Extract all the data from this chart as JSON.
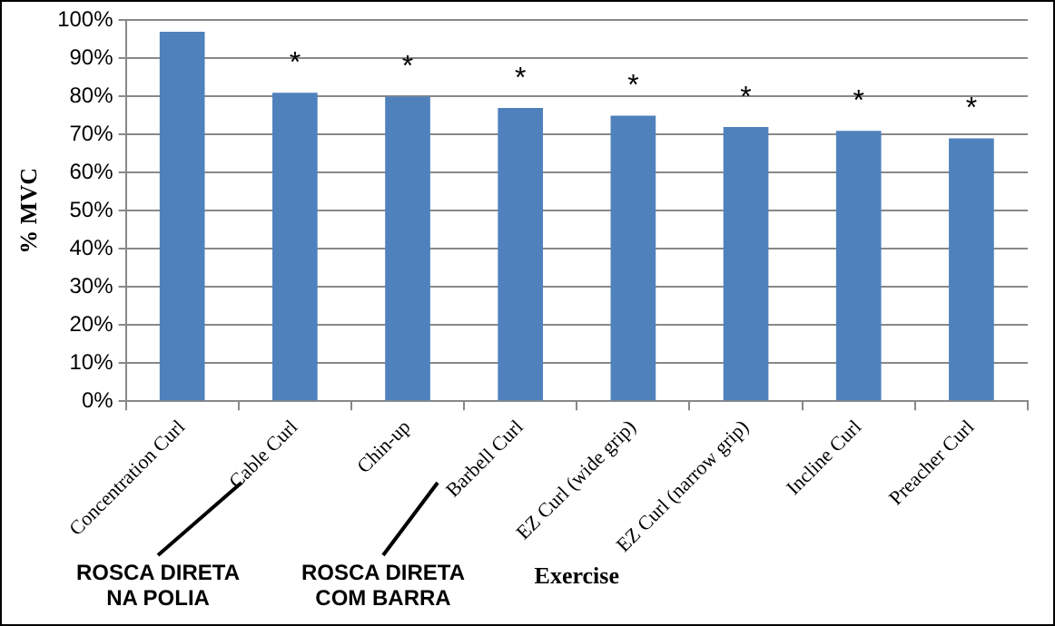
{
  "chart_data": {
    "type": "bar",
    "xlabel": "Exercise",
    "ylabel": "% MVC",
    "categories": [
      "Concentration Curl",
      "Cable Curl",
      "Chin-up",
      "Barbell Curl",
      "EZ Curl (wide grip)",
      "EZ Curl (narrow grip)",
      "Incline Curl",
      "Preacher Curl"
    ],
    "values": [
      97,
      81,
      80,
      77,
      75,
      72,
      71,
      69
    ],
    "color": "#4f81bd",
    "ylim": [
      0,
      100
    ],
    "yticks": [
      {
        "value": 0,
        "label": "0%"
      },
      {
        "value": 10,
        "label": "10%"
      },
      {
        "value": 20,
        "label": "20%"
      },
      {
        "value": 30,
        "label": "30%"
      },
      {
        "value": 40,
        "label": "40%"
      },
      {
        "value": 50,
        "label": "50%"
      },
      {
        "value": 60,
        "label": "60%"
      },
      {
        "value": 70,
        "label": "70%"
      },
      {
        "value": 80,
        "label": "80%"
      },
      {
        "value": 90,
        "label": "90%"
      },
      {
        "value": 100,
        "label": "100%"
      }
    ],
    "grid": "y",
    "annotations": [
      {
        "text": "*",
        "x": "Cable Curl",
        "y": 81
      },
      {
        "text": "*",
        "x": "Chin-up",
        "y": 80
      },
      {
        "text": "*",
        "x": "Barbell Curl",
        "y": 77
      },
      {
        "text": "*",
        "x": "EZ Curl (wide grip)",
        "y": 75
      },
      {
        "text": "*",
        "x": "EZ Curl (narrow grip)",
        "y": 72
      },
      {
        "text": "*",
        "x": "Incline Curl",
        "y": 71
      },
      {
        "text": "*",
        "x": "Preacher Curl",
        "y": 69
      },
      "ROSCA DIRETA NA POLIA",
      "ROSCA DIRETA COM BARRA"
    ]
  }
}
